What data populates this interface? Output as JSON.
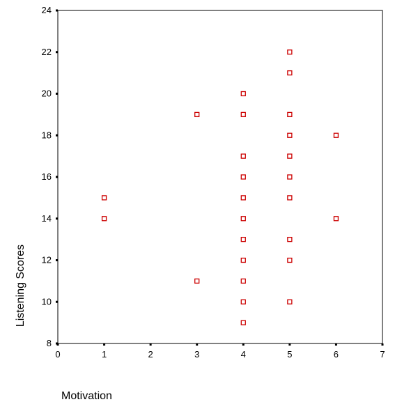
{
  "chart_data": {
    "type": "scatter",
    "title": "",
    "xlabel": "Motivation",
    "ylabel": "Listening Scores",
    "xlim": [
      0,
      7
    ],
    "ylim": [
      8,
      24
    ],
    "x_ticks": [
      "0",
      "1",
      "2",
      "3",
      "4",
      "5",
      "6",
      "7"
    ],
    "y_ticks": [
      "8",
      "10",
      "12",
      "14",
      "16",
      "18",
      "20",
      "22",
      "24"
    ],
    "grid": false,
    "marker_color": "#cc0000",
    "marker": "hollow-square",
    "points": [
      {
        "x": 1,
        "y": 15
      },
      {
        "x": 1,
        "y": 14
      },
      {
        "x": 3,
        "y": 19
      },
      {
        "x": 3,
        "y": 11
      },
      {
        "x": 4,
        "y": 20
      },
      {
        "x": 4,
        "y": 19
      },
      {
        "x": 4,
        "y": 17
      },
      {
        "x": 4,
        "y": 16
      },
      {
        "x": 4,
        "y": 15
      },
      {
        "x": 4,
        "y": 14
      },
      {
        "x": 4,
        "y": 13
      },
      {
        "x": 4,
        "y": 12
      },
      {
        "x": 4,
        "y": 11
      },
      {
        "x": 4,
        "y": 10
      },
      {
        "x": 4,
        "y": 9
      },
      {
        "x": 5,
        "y": 22
      },
      {
        "x": 5,
        "y": 21
      },
      {
        "x": 5,
        "y": 19
      },
      {
        "x": 5,
        "y": 18
      },
      {
        "x": 5,
        "y": 17
      },
      {
        "x": 5,
        "y": 16
      },
      {
        "x": 5,
        "y": 15
      },
      {
        "x": 5,
        "y": 13
      },
      {
        "x": 5,
        "y": 12
      },
      {
        "x": 5,
        "y": 10
      },
      {
        "x": 6,
        "y": 18
      },
      {
        "x": 6,
        "y": 14
      }
    ]
  }
}
